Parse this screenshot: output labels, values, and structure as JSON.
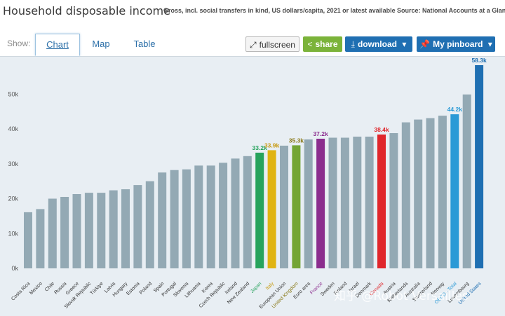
{
  "header": {
    "title": "Household disposable income",
    "subtitle": "Gross, incl. social transfers in kind, US dollars/capita, 2021 or latest available",
    "source": "Source: National Accounts at a Glance"
  },
  "toolbar": {
    "show_label": "Show:",
    "tabs": [
      {
        "label": "Chart",
        "active": true
      },
      {
        "label": "Map",
        "active": false
      },
      {
        "label": "Table",
        "active": false
      }
    ],
    "fullscreen_label": "fullscreen",
    "share_label": "share",
    "download_label": "download",
    "pinboard_label": "My pinboard"
  },
  "watermark": "知乎 @Robot Versailles",
  "colors": {
    "default_bar": "#93a9b4",
    "highlight_bar": "#1f6fb2",
    "background": "#e8eef3"
  },
  "chart_data": {
    "type": "bar",
    "title": "Household disposable income",
    "ylim": [
      0,
      58300
    ],
    "yticks": [
      "0k",
      "10k",
      "20k",
      "30k",
      "40k",
      "50k"
    ],
    "ytick_values": [
      0,
      10000,
      20000,
      30000,
      40000,
      50000
    ],
    "grid": false,
    "categories": [
      "Costa Rica",
      "Mexico",
      "Chile",
      "Russia",
      "Greece",
      "Slovak Republic",
      "Türkiye",
      "Latvia",
      "Hungary",
      "Estonia",
      "Poland",
      "Spain",
      "Portugal",
      "Slovenia",
      "Lithuania",
      "Korea",
      "Czech Republic",
      "Ireland",
      "New Zealand",
      "Japan",
      "Italy",
      "European Union",
      "United Kingdom",
      "Euro area",
      "France",
      "Sweden",
      "Finland",
      "Israel",
      "Denmark",
      "Canada",
      "Austria",
      "Netherlands",
      "Australia",
      "Switzerland",
      "Norway",
      "OECD - Total",
      "Luxembourg",
      "United States"
    ],
    "values": [
      16100,
      17000,
      20000,
      20500,
      21300,
      21700,
      21700,
      22400,
      22700,
      23900,
      25000,
      27500,
      28200,
      28400,
      29500,
      29500,
      30300,
      31500,
      32200,
      33200,
      33900,
      35200,
      35300,
      37000,
      37200,
      37500,
      37500,
      37800,
      37800,
      38400,
      38800,
      41900,
      42700,
      43100,
      43800,
      44200,
      49900,
      58300
    ],
    "bar_colors": [
      "#93a9b4",
      "#93a9b4",
      "#93a9b4",
      "#93a9b4",
      "#93a9b4",
      "#93a9b4",
      "#93a9b4",
      "#93a9b4",
      "#93a9b4",
      "#93a9b4",
      "#93a9b4",
      "#93a9b4",
      "#93a9b4",
      "#93a9b4",
      "#93a9b4",
      "#93a9b4",
      "#93a9b4",
      "#93a9b4",
      "#93a9b4",
      "#27a35d",
      "#e0b411",
      "#93a9b4",
      "#73a534",
      "#93a9b4",
      "#8b2d8e",
      "#93a9b4",
      "#93a9b4",
      "#93a9b4",
      "#93a9b4",
      "#e0262b",
      "#93a9b4",
      "#93a9b4",
      "#93a9b4",
      "#93a9b4",
      "#93a9b4",
      "#2a9ad6",
      "#93a9b4",
      "#1f6fb2"
    ],
    "label_colors": [
      "#333333",
      "#333333",
      "#333333",
      "#333333",
      "#333333",
      "#333333",
      "#333333",
      "#333333",
      "#333333",
      "#333333",
      "#333333",
      "#333333",
      "#333333",
      "#333333",
      "#333333",
      "#333333",
      "#333333",
      "#333333",
      "#333333",
      "#27a35d",
      "#c79a10",
      "#333333",
      "#8a7a1a",
      "#333333",
      "#8b2d8e",
      "#333333",
      "#333333",
      "#333333",
      "#333333",
      "#e0262b",
      "#333333",
      "#333333",
      "#333333",
      "#333333",
      "#333333",
      "#2a9ad6",
      "#333333",
      "#1f6fb2"
    ],
    "data_labels": [
      {
        "index": 19,
        "text": "33.2k"
      },
      {
        "index": 20,
        "text": "33.9k"
      },
      {
        "index": 22,
        "text": "35.3k"
      },
      {
        "index": 24,
        "text": "37.2k"
      },
      {
        "index": 29,
        "text": "38.4k"
      },
      {
        "index": 35,
        "text": "44.2k"
      },
      {
        "index": 37,
        "text": "58.3k"
      }
    ]
  }
}
